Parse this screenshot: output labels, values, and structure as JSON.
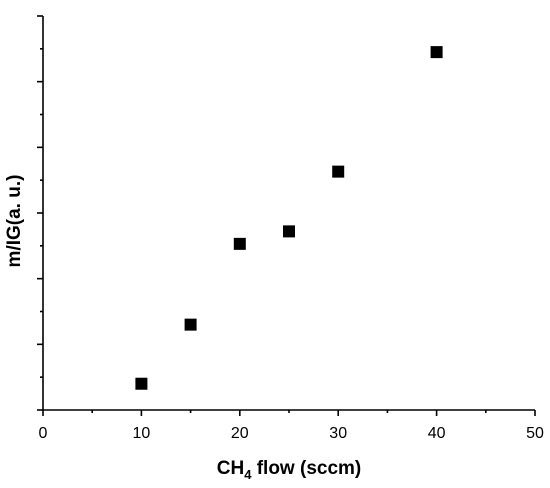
{
  "chart_data": {
    "type": "scatter",
    "xlabel": "CH",
    "xlabel_subscript": "4",
    "xlabel_suffix": " flow (sccm)",
    "ylabel": "m/IG(a. u.)",
    "xlim": [
      0,
      50
    ],
    "x_ticks": [
      "0",
      "10",
      "20",
      "30",
      "40",
      "50"
    ],
    "y_tick_labels_shown": false,
    "ylim": [
      0,
      6
    ],
    "marker": "square",
    "color": "#000000",
    "grid": false,
    "legend": "none",
    "series": [
      {
        "x": [
          10,
          15,
          20,
          25,
          30,
          40
        ],
        "y": [
          0.4,
          1.3,
          2.53,
          2.72,
          3.63,
          5.45
        ]
      }
    ]
  }
}
